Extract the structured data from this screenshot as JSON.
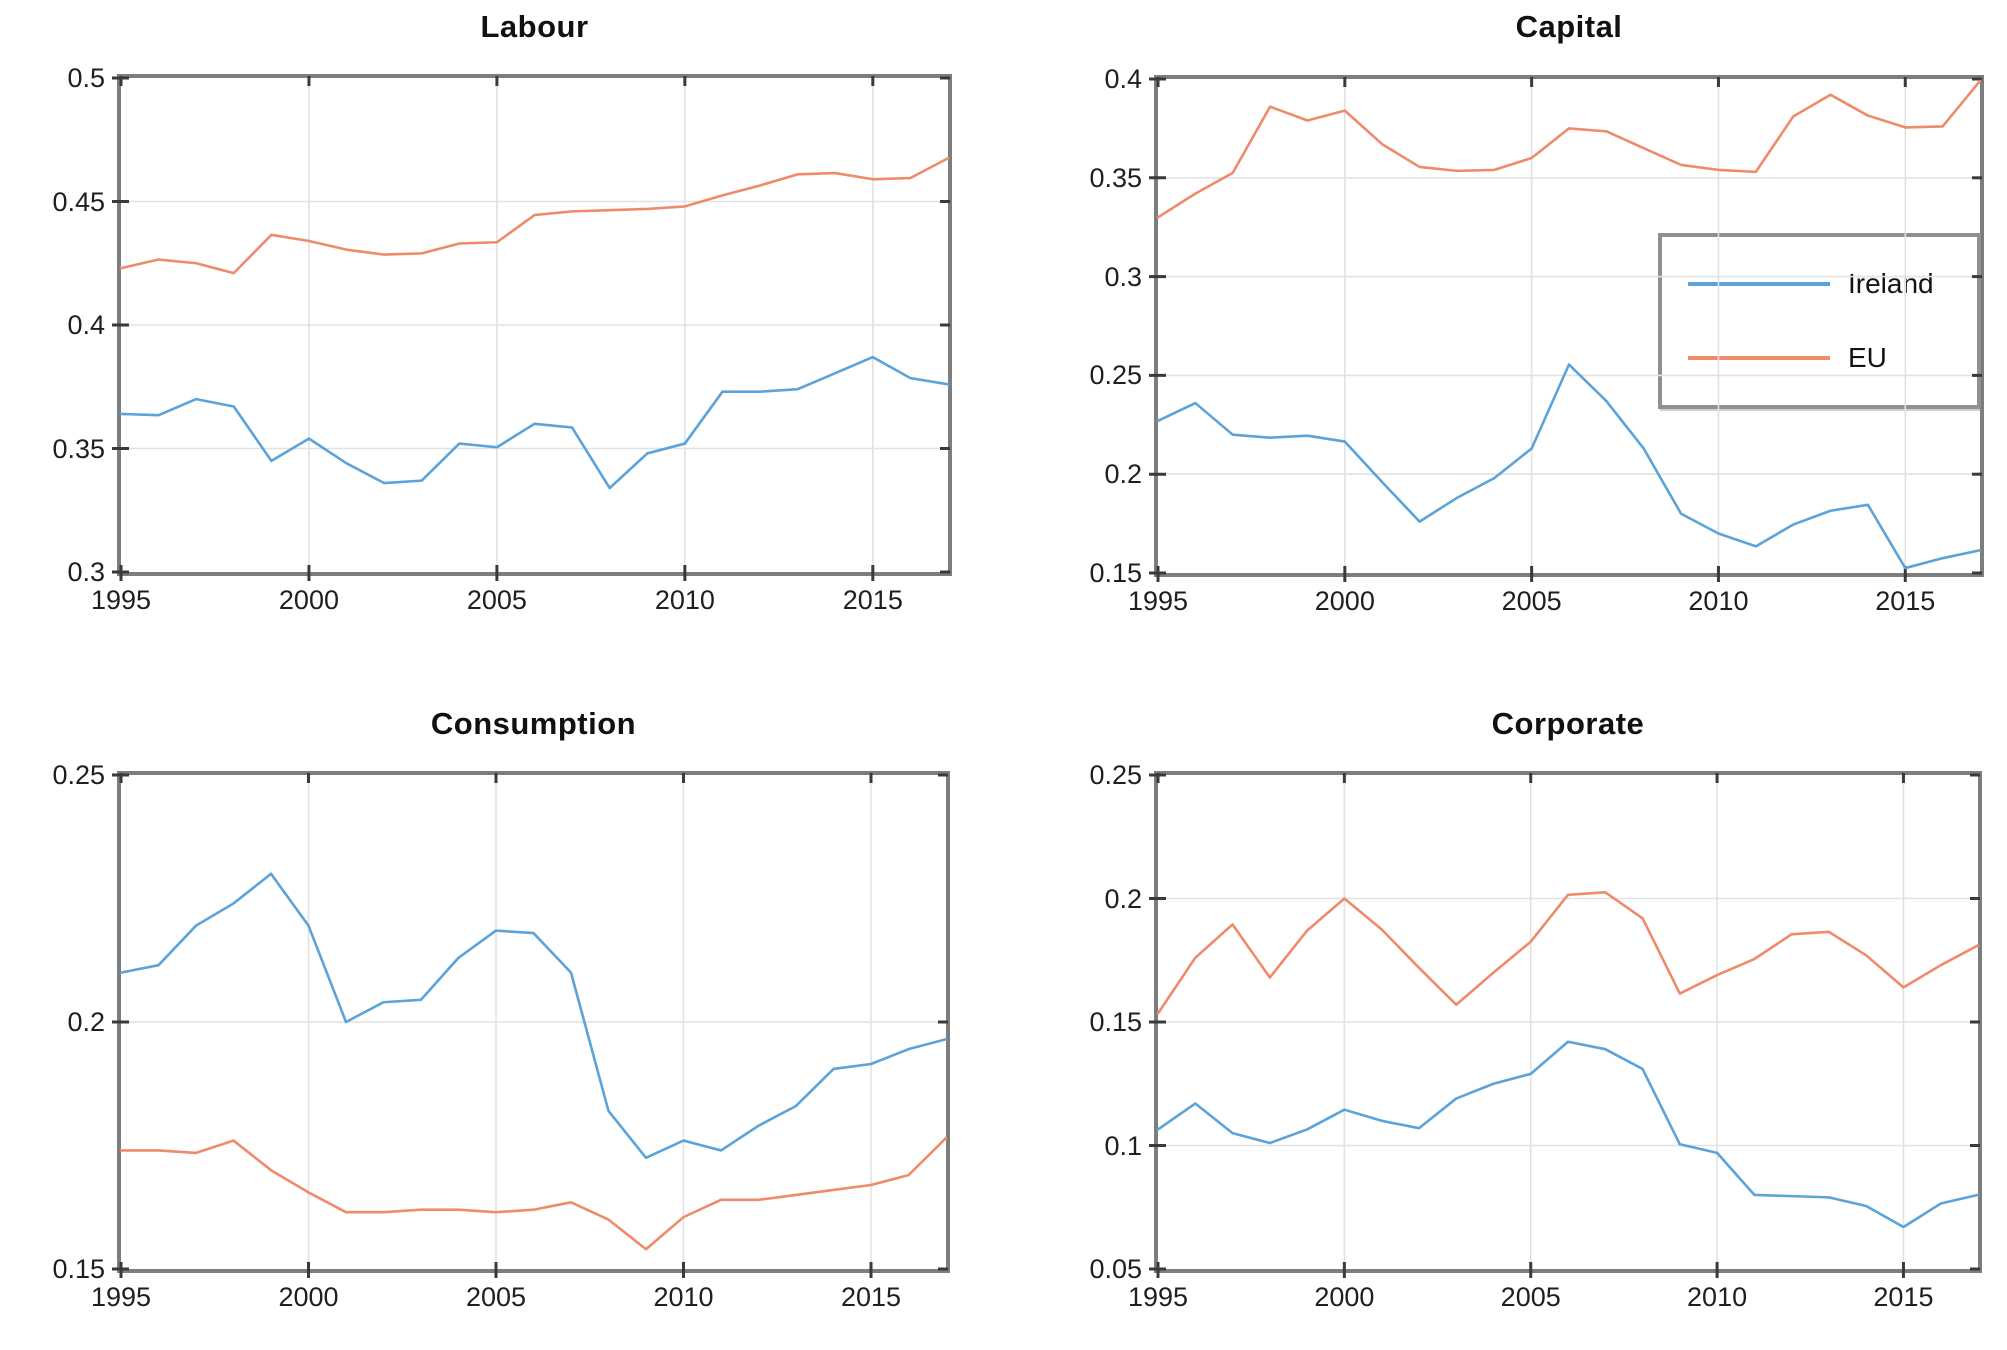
{
  "figure": {
    "background": "#ffffff",
    "tick_color": "#1f1f1f",
    "grid_color": "#e2e2e2",
    "spine_color": "#7d7d7d"
  },
  "legend": {
    "items": [
      {
        "label": "Ireland",
        "color": "#5ba3d9"
      },
      {
        "label": "EU",
        "color": "#ee8b6b"
      }
    ]
  },
  "chart_data": [
    {
      "type": "line",
      "title": "Labour",
      "xlabel": "",
      "ylabel": "",
      "grid": true,
      "years": [
        1995,
        1996,
        1997,
        1998,
        1999,
        2000,
        2001,
        2002,
        2003,
        2004,
        2005,
        2006,
        2007,
        2008,
        2009,
        2010,
        2011,
        2012,
        2013,
        2014,
        2015,
        2016,
        2017
      ],
      "xlim": [
        1995,
        2017
      ],
      "xticks": [
        1995,
        2000,
        2005,
        2010,
        2015
      ],
      "ylim": [
        0.3,
        0.5
      ],
      "yticks": [
        0.3,
        0.35,
        0.4,
        0.45,
        0.5
      ],
      "series": [
        {
          "name": "Ireland",
          "color": "#5ba3d9",
          "values": [
            0.364,
            0.3635,
            0.37,
            0.367,
            0.345,
            0.354,
            0.344,
            0.336,
            0.337,
            0.352,
            0.3505,
            0.36,
            0.3585,
            0.334,
            0.348,
            0.352,
            0.373,
            0.373,
            0.374,
            0.3805,
            0.387,
            0.3785,
            0.376
          ]
        },
        {
          "name": "EU",
          "color": "#ee8b6b",
          "values": [
            0.423,
            0.4265,
            0.425,
            0.421,
            0.4365,
            0.434,
            0.4305,
            0.4285,
            0.429,
            0.433,
            0.4335,
            0.4445,
            0.446,
            0.4465,
            0.447,
            0.448,
            0.4525,
            0.4565,
            0.461,
            0.4615,
            0.459,
            0.4595,
            0.4675
          ]
        }
      ],
      "legend_position": "none"
    },
    {
      "type": "line",
      "title": "Capital",
      "xlabel": "",
      "ylabel": "",
      "grid": true,
      "years": [
        1995,
        1996,
        1997,
        1998,
        1999,
        2000,
        2001,
        2002,
        2003,
        2004,
        2005,
        2006,
        2007,
        2008,
        2009,
        2010,
        2011,
        2012,
        2013,
        2014,
        2015,
        2016,
        2017
      ],
      "xlim": [
        1995,
        2017
      ],
      "xticks": [
        1995,
        2000,
        2005,
        2010,
        2015
      ],
      "ylim": [
        0.15,
        0.4
      ],
      "yticks": [
        0.15,
        0.2,
        0.25,
        0.3,
        0.35,
        0.4
      ],
      "series": [
        {
          "name": "Ireland",
          "color": "#5ba3d9",
          "values": [
            0.227,
            0.236,
            0.22,
            0.2185,
            0.2195,
            0.2165,
            0.196,
            0.176,
            0.188,
            0.198,
            0.213,
            0.2555,
            0.237,
            0.213,
            0.18,
            0.17,
            0.1635,
            0.1745,
            0.1815,
            0.1845,
            0.1525,
            0.1575,
            0.1615
          ]
        },
        {
          "name": "EU",
          "color": "#ee8b6b",
          "values": [
            0.33,
            0.342,
            0.3525,
            0.386,
            0.379,
            0.384,
            0.367,
            0.3555,
            0.3535,
            0.354,
            0.36,
            0.375,
            0.3735,
            0.365,
            0.3565,
            0.354,
            0.353,
            0.381,
            0.392,
            0.3815,
            0.3755,
            0.376,
            0.399
          ]
        }
      ],
      "legend_position": "right-center"
    },
    {
      "type": "line",
      "title": "Consumption",
      "xlabel": "",
      "ylabel": "",
      "grid": true,
      "years": [
        1995,
        1996,
        1997,
        1998,
        1999,
        2000,
        2001,
        2002,
        2003,
        2004,
        2005,
        2006,
        2007,
        2008,
        2009,
        2010,
        2011,
        2012,
        2013,
        2014,
        2015,
        2016,
        2017
      ],
      "xlim": [
        1995,
        2017
      ],
      "xticks": [
        1995,
        2000,
        2005,
        2010,
        2015
      ],
      "ylim": [
        0.15,
        0.25
      ],
      "yticks": [
        0.15,
        0.2,
        0.25
      ],
      "series": [
        {
          "name": "Ireland",
          "color": "#5ba3d9",
          "values": [
            0.21,
            0.2115,
            0.2195,
            0.224,
            0.23,
            0.2195,
            0.2,
            0.204,
            0.2045,
            0.213,
            0.2185,
            0.218,
            0.21,
            0.182,
            0.1725,
            0.176,
            0.174,
            0.179,
            0.183,
            0.1905,
            0.1915,
            0.1945,
            0.1965
          ]
        },
        {
          "name": "EU",
          "color": "#ee8b6b",
          "values": [
            0.174,
            0.174,
            0.1735,
            0.176,
            0.17,
            0.1655,
            0.1615,
            0.1615,
            0.162,
            0.162,
            0.1615,
            0.162,
            0.1635,
            0.16,
            0.154,
            0.1605,
            0.164,
            0.164,
            0.165,
            0.166,
            0.167,
            0.169,
            0.1765
          ]
        }
      ],
      "legend_position": "none"
    },
    {
      "type": "line",
      "title": "Corporate",
      "xlabel": "",
      "ylabel": "",
      "grid": true,
      "years": [
        1995,
        1996,
        1997,
        1998,
        1999,
        2000,
        2001,
        2002,
        2003,
        2004,
        2005,
        2006,
        2007,
        2008,
        2009,
        2010,
        2011,
        2012,
        2013,
        2014,
        2015,
        2016,
        2017
      ],
      "xlim": [
        1995,
        2017
      ],
      "xticks": [
        1995,
        2000,
        2005,
        2010,
        2015
      ],
      "ylim": [
        0.05,
        0.25
      ],
      "yticks": [
        0.05,
        0.1,
        0.15,
        0.2,
        0.25
      ],
      "series": [
        {
          "name": "Ireland",
          "color": "#5ba3d9",
          "values": [
            0.1065,
            0.117,
            0.105,
            0.101,
            0.1065,
            0.1145,
            0.11,
            0.107,
            0.119,
            0.125,
            0.129,
            0.142,
            0.139,
            0.131,
            0.1005,
            0.097,
            0.08,
            0.0795,
            0.079,
            0.0755,
            0.067,
            0.0765,
            0.08
          ]
        },
        {
          "name": "EU",
          "color": "#ee8b6b",
          "values": [
            0.1535,
            0.176,
            0.1895,
            0.168,
            0.187,
            0.2,
            0.1875,
            0.172,
            0.157,
            0.17,
            0.1825,
            0.2015,
            0.2025,
            0.192,
            0.1615,
            0.169,
            0.1755,
            0.1855,
            0.1865,
            0.177,
            0.164,
            0.173,
            0.181
          ]
        }
      ],
      "legend_position": "none"
    }
  ]
}
